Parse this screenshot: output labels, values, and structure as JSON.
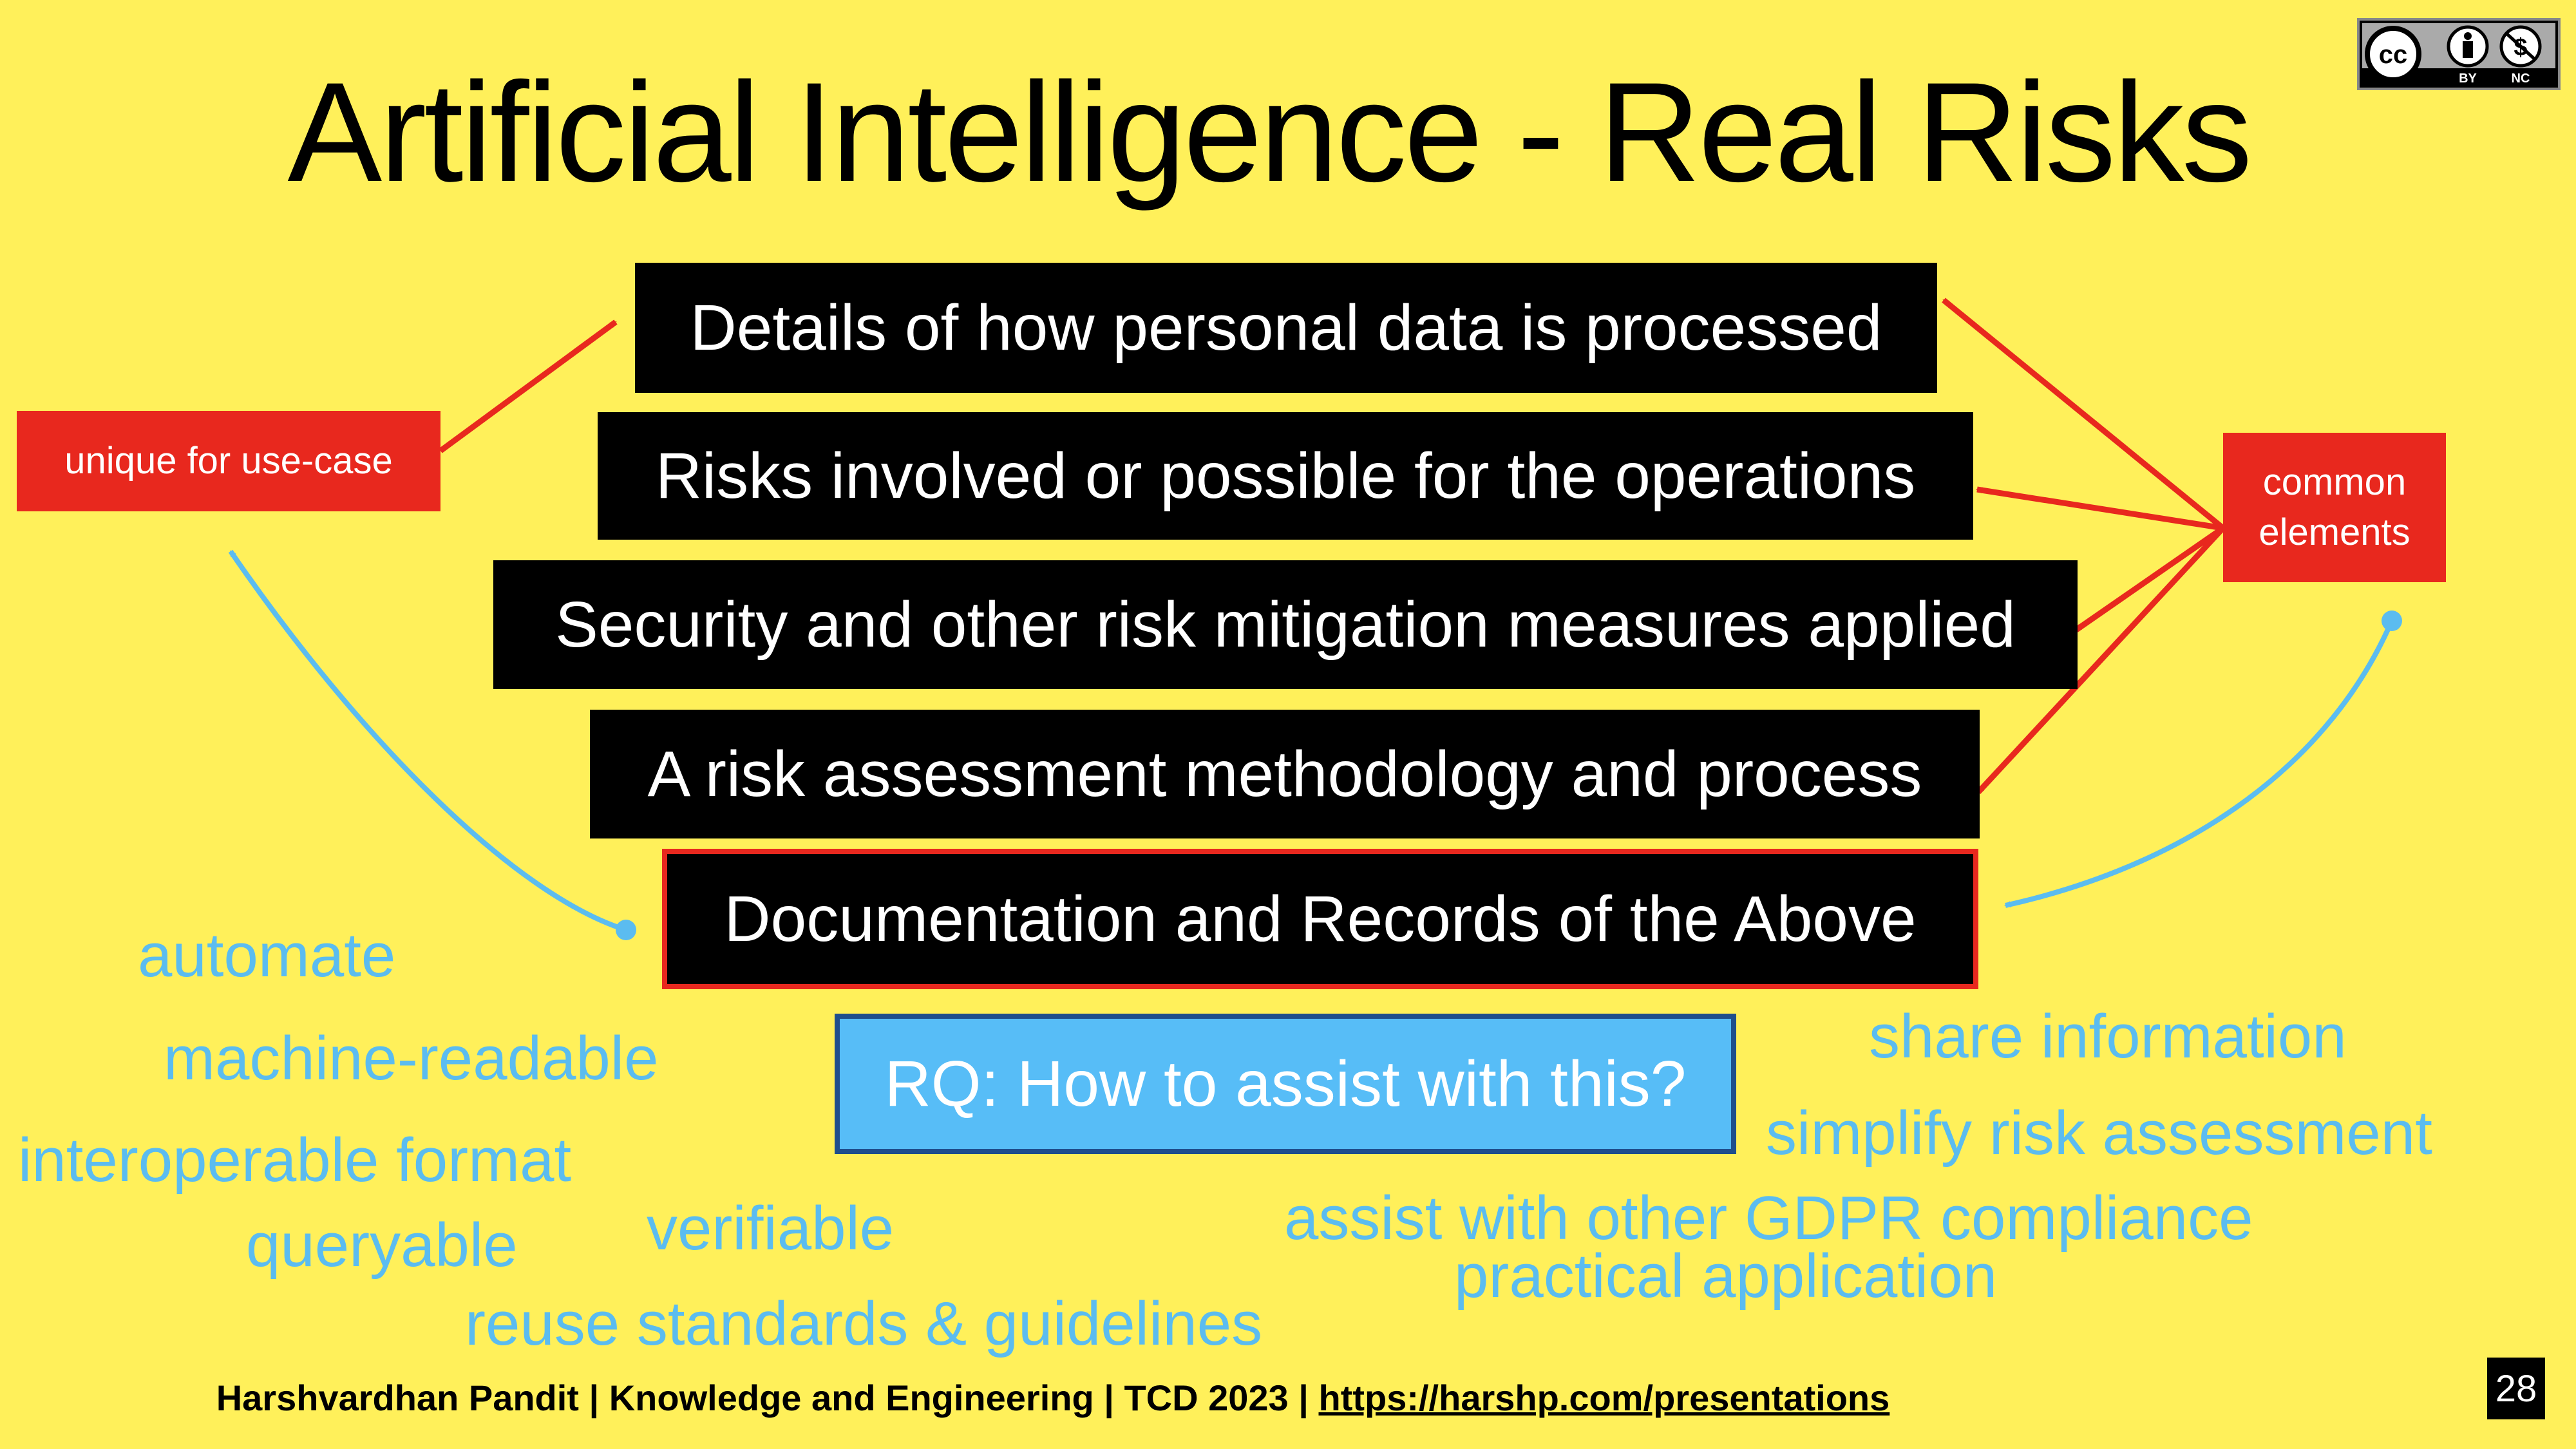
{
  "title": "Artificial Intelligence - Real Risks",
  "license": {
    "icons": [
      "cc-icon",
      "by-icon",
      "nc-icon"
    ],
    "by_label": "BY",
    "nc_label": "NC",
    "cc_label": "cc"
  },
  "items": [
    "Details of how personal data is processed",
    "Risks involved or possible for the operations",
    "Security and other risk mitigation measures applied",
    "A risk assessment methodology and process",
    "Documentation and Records of the Above"
  ],
  "labels": {
    "unique": "unique for use-case",
    "common": "common\nelements"
  },
  "rq": "RQ: How to assist with this?",
  "benefits_left": [
    "automate",
    "machine-readable",
    "interoperable format",
    "queryable",
    "verifiable",
    "reuse standards & guidelines"
  ],
  "benefits_right": [
    "share information",
    "simplify risk assessment",
    "assist with other GDPR compliance",
    "practical application"
  ],
  "footer": {
    "text": "Harshvardhan Pandit | Knowledge and Engineering | TCD 2023 | ",
    "link": "https://harshp.com/presentations"
  },
  "slide_number": "28",
  "colors": {
    "background": "#fff05a",
    "red": "#e8281e",
    "blue": "#5bbcf0",
    "rq_fill": "#57bdf7",
    "rq_border": "#1f4e8c"
  }
}
